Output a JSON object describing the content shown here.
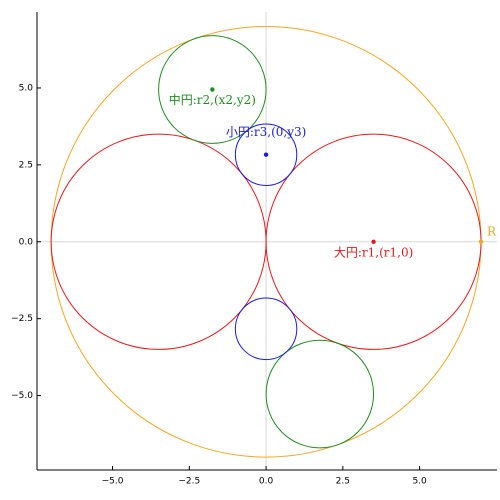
{
  "chart_data": {
    "type": "circles",
    "xlim": [
      -7.46,
      7.52
    ],
    "ylim": [
      -7.42,
      7.47
    ],
    "xticks": [
      {
        "value": -5,
        "label": "−5.0"
      },
      {
        "value": -2.5,
        "label": "−2.5"
      },
      {
        "value": 0,
        "label": "0.0"
      },
      {
        "value": 2.5,
        "label": "2.5"
      },
      {
        "value": 5,
        "label": "5.0"
      }
    ],
    "yticks": [
      {
        "value": -5,
        "label": "−5.0"
      },
      {
        "value": -2.5,
        "label": "−2.5"
      },
      {
        "value": 0,
        "label": "0.0"
      },
      {
        "value": 2.5,
        "label": "2.5"
      },
      {
        "value": 5,
        "label": "5.0"
      }
    ],
    "zero_lines": true,
    "circles": [
      {
        "cx": 0,
        "cy": 0,
        "r": 7,
        "color": "#f5a623"
      },
      {
        "cx": -3.5,
        "cy": 0,
        "r": 3.5,
        "color": "#e8191c"
      },
      {
        "cx": 3.5,
        "cy": 0,
        "r": 3.5,
        "color": "#e8191c"
      },
      {
        "cx": -1.75,
        "cy": 4.95,
        "r": 1.75,
        "color": "#1e8c1e"
      },
      {
        "cx": 1.75,
        "cy": -4.95,
        "r": 1.75,
        "color": "#1e8c1e"
      },
      {
        "cx": 0,
        "cy": 2.83,
        "r": 1,
        "color": "#1a1ae6"
      },
      {
        "cx": 0,
        "cy": -2.83,
        "r": 1,
        "color": "#1a1ae6"
      }
    ],
    "points": [
      {
        "x": 3.5,
        "y": 0,
        "color": "#e8191c",
        "label": "大円:r1,(r1,0)",
        "label_position": "below"
      },
      {
        "x": -1.75,
        "y": 4.95,
        "color": "#1e8c1e",
        "label": "中円:r2,(x2,y2)",
        "label_position": "below"
      },
      {
        "x": 0,
        "y": 2.83,
        "color": "#1a1ae6",
        "label": "小円:r3,(0,y3)",
        "label_position": "above"
      },
      {
        "x": 7,
        "y": 0,
        "color": "#f5a623",
        "label": "R",
        "label_position": "right"
      }
    ]
  }
}
